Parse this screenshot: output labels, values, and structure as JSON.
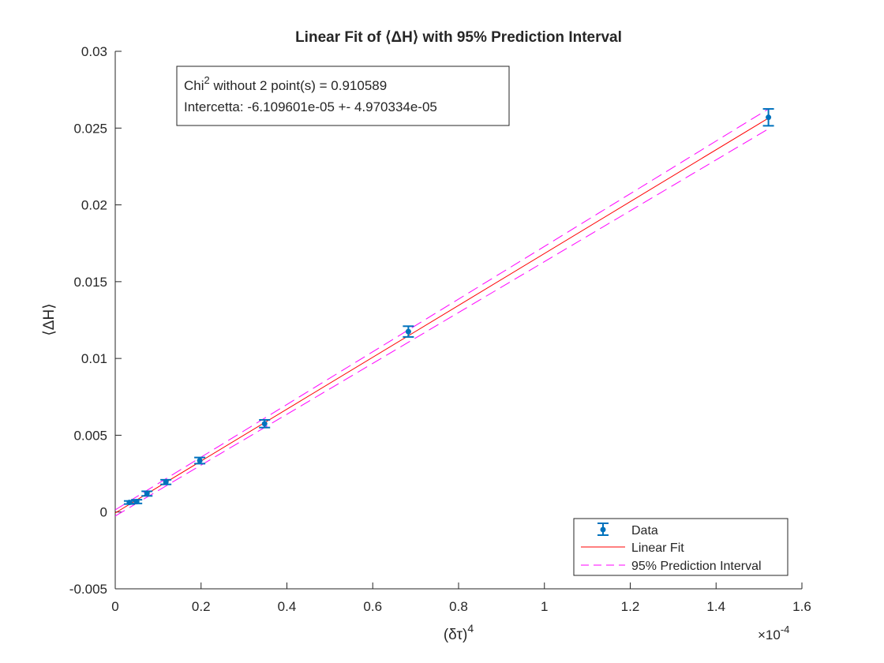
{
  "chart_data": {
    "type": "scatter",
    "title": "Linear Fit of ⟨ΔH⟩ with 95% Prediction Interval",
    "xlabel": "(δτ)",
    "xlabel_sup": "4",
    "ylabel": "⟨ΔH⟩",
    "x_exponent_base": "×10",
    "x_exponent_power": "-4",
    "xlim": [
      0,
      1.6
    ],
    "ylim": [
      -0.005,
      0.03
    ],
    "x_ticks": [
      0,
      0.2,
      0.4,
      0.6,
      0.8,
      1,
      1.2,
      1.4,
      1.6
    ],
    "x_tick_labels": [
      "0",
      "0.2",
      "0.4",
      "0.6",
      "0.8",
      "1",
      "1.2",
      "1.4",
      "1.6"
    ],
    "y_ticks": [
      -0.005,
      0,
      0.005,
      0.01,
      0.015,
      0.02,
      0.025,
      0.03
    ],
    "y_tick_labels": [
      "-0.005",
      "0",
      "0.005",
      "0.01",
      "0.015",
      "0.02",
      "0.025",
      "0.03"
    ],
    "grid": false,
    "legend_position": "bottom-right",
    "series": [
      {
        "name": "Data",
        "color": "#0072BD",
        "marker": "circle",
        "points": [
          {
            "x": 0.033,
            "y": 0.00062,
            "err": 0.0001
          },
          {
            "x": 0.05,
            "y": 0.00068,
            "err": 0.00012
          },
          {
            "x": 0.074,
            "y": 0.0012,
            "err": 0.00015
          },
          {
            "x": 0.118,
            "y": 0.00195,
            "err": 0.00015
          },
          {
            "x": 0.197,
            "y": 0.00335,
            "err": 0.0002
          },
          {
            "x": 0.348,
            "y": 0.00575,
            "err": 0.00025
          },
          {
            "x": 0.683,
            "y": 0.01175,
            "err": 0.00035
          },
          {
            "x": 1.522,
            "y": 0.0257,
            "err": 0.00055
          }
        ]
      },
      {
        "name": "Linear Fit",
        "color": "#FF0000",
        "style": "solid",
        "x": [
          0,
          1.522
        ],
        "y": [
          -6e-05,
          0.02565
        ]
      },
      {
        "name": "95% Prediction Interval",
        "color": "#FF00FF",
        "style": "dashed",
        "upper": {
          "x": [
            0,
            1.522
          ],
          "y": [
            0.00014,
            0.02625
          ]
        },
        "lower": {
          "x": [
            0,
            1.522
          ],
          "y": [
            -0.00026,
            0.02495
          ]
        }
      }
    ],
    "annotation": {
      "line1_prefix": "Chi",
      "line1_sup": "2",
      "line1_suffix": " without 2 point(s) = 0.910589",
      "line2": "Intercetta: -6.109601e-05 +- 4.970334e-05"
    }
  }
}
